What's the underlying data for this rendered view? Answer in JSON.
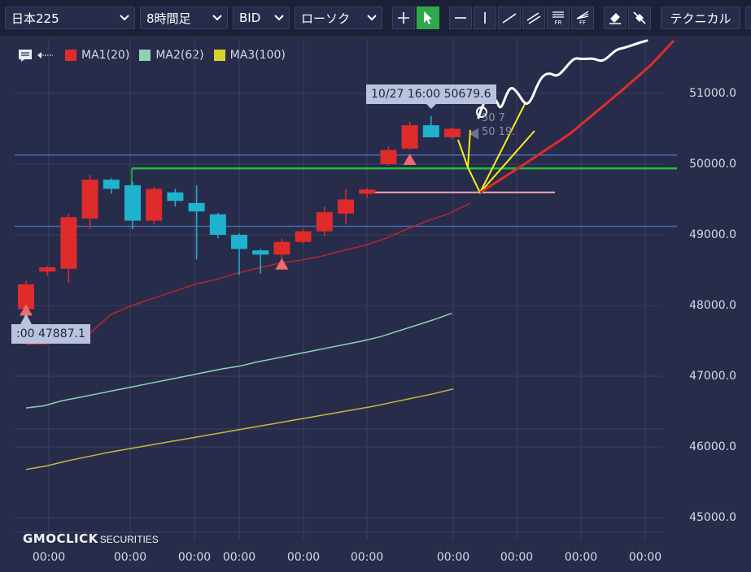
{
  "toolbar": {
    "symbol": "日本225",
    "timeframe": "8時間足",
    "price_type": "BID",
    "chart_type": "ローソク",
    "technical": "テクニカル"
  },
  "tools": [
    {
      "name": "crosshair-tool",
      "icon": "plus-icon"
    },
    {
      "name": "pointer-tool",
      "icon": "cursor-arrow-icon",
      "active": true
    },
    {
      "name": "horizontal-line-tool",
      "icon": "horizontal-line-icon"
    },
    {
      "name": "vertical-line-tool",
      "icon": "vertical-line-icon"
    },
    {
      "name": "trend-line-tool",
      "icon": "diagonal-line-icon"
    },
    {
      "name": "channel-tool",
      "icon": "parallel-lines-icon"
    },
    {
      "name": "fibonacci-retracement-tool",
      "icon": "fibonacci-retracement-icon",
      "label": "FR"
    },
    {
      "name": "fibonacci-fan-tool",
      "icon": "fibonacci-fan-icon",
      "label": "FF"
    },
    {
      "name": "eraser-tool",
      "icon": "eraser-icon"
    },
    {
      "name": "erase-all-tool",
      "icon": "erase-all-icon"
    }
  ],
  "legend": [
    {
      "label": "MA1(20)",
      "color": "#e02b2b"
    },
    {
      "label": "MA2(62)",
      "color": "#8fd0b6"
    },
    {
      "label": "MA3(100)",
      "color": "#d6d22c"
    }
  ],
  "colors": {
    "background": "#272c4b",
    "toolbar": "#1c2037",
    "up_candle": "#e02b2b",
    "down_candle": "#1fb3d0",
    "grid": "#3b4062",
    "blue_line": "#4a6bb0",
    "green_line": "#1fbf3a",
    "pink_line": "#f1a4b4",
    "yellow_annot": "#f5ef18",
    "white_annot": "#ffffff",
    "red_projection": "#e02b2b"
  },
  "price_axis": {
    "labels": [
      "51000.0",
      "50000.0",
      "49000.0",
      "48000.0",
      "47000.0",
      "46000.0",
      "45000.0"
    ],
    "values": [
      51000,
      50000,
      49000,
      48000,
      47000,
      46000,
      45000
    ]
  },
  "time_axis": {
    "labels": [
      "00:00",
      "00:00",
      "00:00",
      "00:00",
      "00:00",
      "00:00",
      "00:00",
      "00:00",
      "00:00",
      "00:00"
    ]
  },
  "tooltips": {
    "high": "10/27 16:00 50679.6",
    "low": ":00 47887.1"
  },
  "partial_labels": [
    "50 7",
    "50 19."
  ],
  "logo": {
    "brand": "GMOCLICK",
    "sub": "SECURITIES"
  },
  "chart_data": {
    "type": "candlestick",
    "candles": [
      {
        "o": 47950,
        "h": 48350,
        "l": 47890,
        "c": 48300
      },
      {
        "o": 48480,
        "h": 48560,
        "l": 48420,
        "c": 48540
      },
      {
        "o": 48520,
        "h": 49300,
        "l": 48320,
        "c": 49250
      },
      {
        "o": 49230,
        "h": 49850,
        "l": 49080,
        "c": 49780
      },
      {
        "o": 49780,
        "h": 49800,
        "l": 49580,
        "c": 49650
      },
      {
        "o": 49700,
        "h": 49750,
        "l": 49080,
        "c": 49200
      },
      {
        "o": 49200,
        "h": 49680,
        "l": 49150,
        "c": 49650
      },
      {
        "o": 49600,
        "h": 49650,
        "l": 49400,
        "c": 49480
      },
      {
        "o": 49450,
        "h": 49700,
        "l": 48650,
        "c": 49330
      },
      {
        "o": 49290,
        "h": 49310,
        "l": 48950,
        "c": 49000
      },
      {
        "o": 49000,
        "h": 49020,
        "l": 48430,
        "c": 48800
      },
      {
        "o": 48780,
        "h": 48800,
        "l": 48450,
        "c": 48720
      },
      {
        "o": 48720,
        "h": 48950,
        "l": 48650,
        "c": 48900
      },
      {
        "o": 48900,
        "h": 49080,
        "l": 48880,
        "c": 49050
      },
      {
        "o": 49050,
        "h": 49400,
        "l": 48980,
        "c": 49320
      },
      {
        "o": 49300,
        "h": 49650,
        "l": 49150,
        "c": 49500
      },
      {
        "o": 49580,
        "h": 49660,
        "l": 49520,
        "c": 49640
      },
      {
        "o": 50000,
        "h": 50250,
        "l": 49980,
        "c": 50200
      },
      {
        "o": 50220,
        "h": 50600,
        "l": 50200,
        "c": 50550
      },
      {
        "o": 50550,
        "h": 50680,
        "l": 50380,
        "c": 50380
      },
      {
        "o": 50380,
        "h": 50520,
        "l": 50350,
        "c": 50500
      }
    ],
    "ma1": {
      "label": "MA1(20)",
      "x_start_candle": 0,
      "values": [
        47450,
        47460,
        47500,
        47600,
        47870,
        48000,
        48100,
        48200,
        48300,
        48370,
        48460,
        48530,
        48600,
        48640,
        48700,
        48780,
        48850,
        48950,
        49080,
        49200,
        49300,
        49450
      ]
    },
    "ma2": {
      "label": "MA2(62)",
      "values": [
        46550,
        46580,
        46650,
        46700,
        46750,
        46800,
        46850,
        46900,
        46950,
        47000,
        47050,
        47100,
        47140,
        47200,
        47250,
        47300,
        47350,
        47400,
        47450,
        47500,
        47560,
        47640,
        47720,
        47800,
        47890
      ]
    },
    "ma3": {
      "label": "MA3(100)",
      "values": [
        45680,
        45730,
        45800,
        45860,
        45920,
        45970,
        46020,
        46070,
        46120,
        46170,
        46220,
        46270,
        46320,
        46370,
        46420,
        46470,
        46520,
        46570,
        46630,
        46690,
        46750,
        46820
      ]
    },
    "horizontal_lines": [
      {
        "name": "resistance-line-upper",
        "price": 50130,
        "color": "#4a6bb0"
      },
      {
        "name": "resistance-line-lower",
        "price": 49120,
        "color": "#4a6bb0"
      },
      {
        "name": "green-support-line",
        "price": 49940,
        "color": "#1fbf3a"
      },
      {
        "name": "pink-target-line",
        "price": 49600,
        "color": "#f1a4b4"
      }
    ],
    "markers": [
      {
        "type": "triangle-up",
        "candle": 18,
        "price": 50080
      },
      {
        "type": "triangle-up",
        "candle": 12,
        "price": 48600
      },
      {
        "type": "triangle-up",
        "candle": 0,
        "price": 47950
      },
      {
        "type": "triangle-left",
        "candle": 21,
        "price": 50430
      }
    ]
  }
}
